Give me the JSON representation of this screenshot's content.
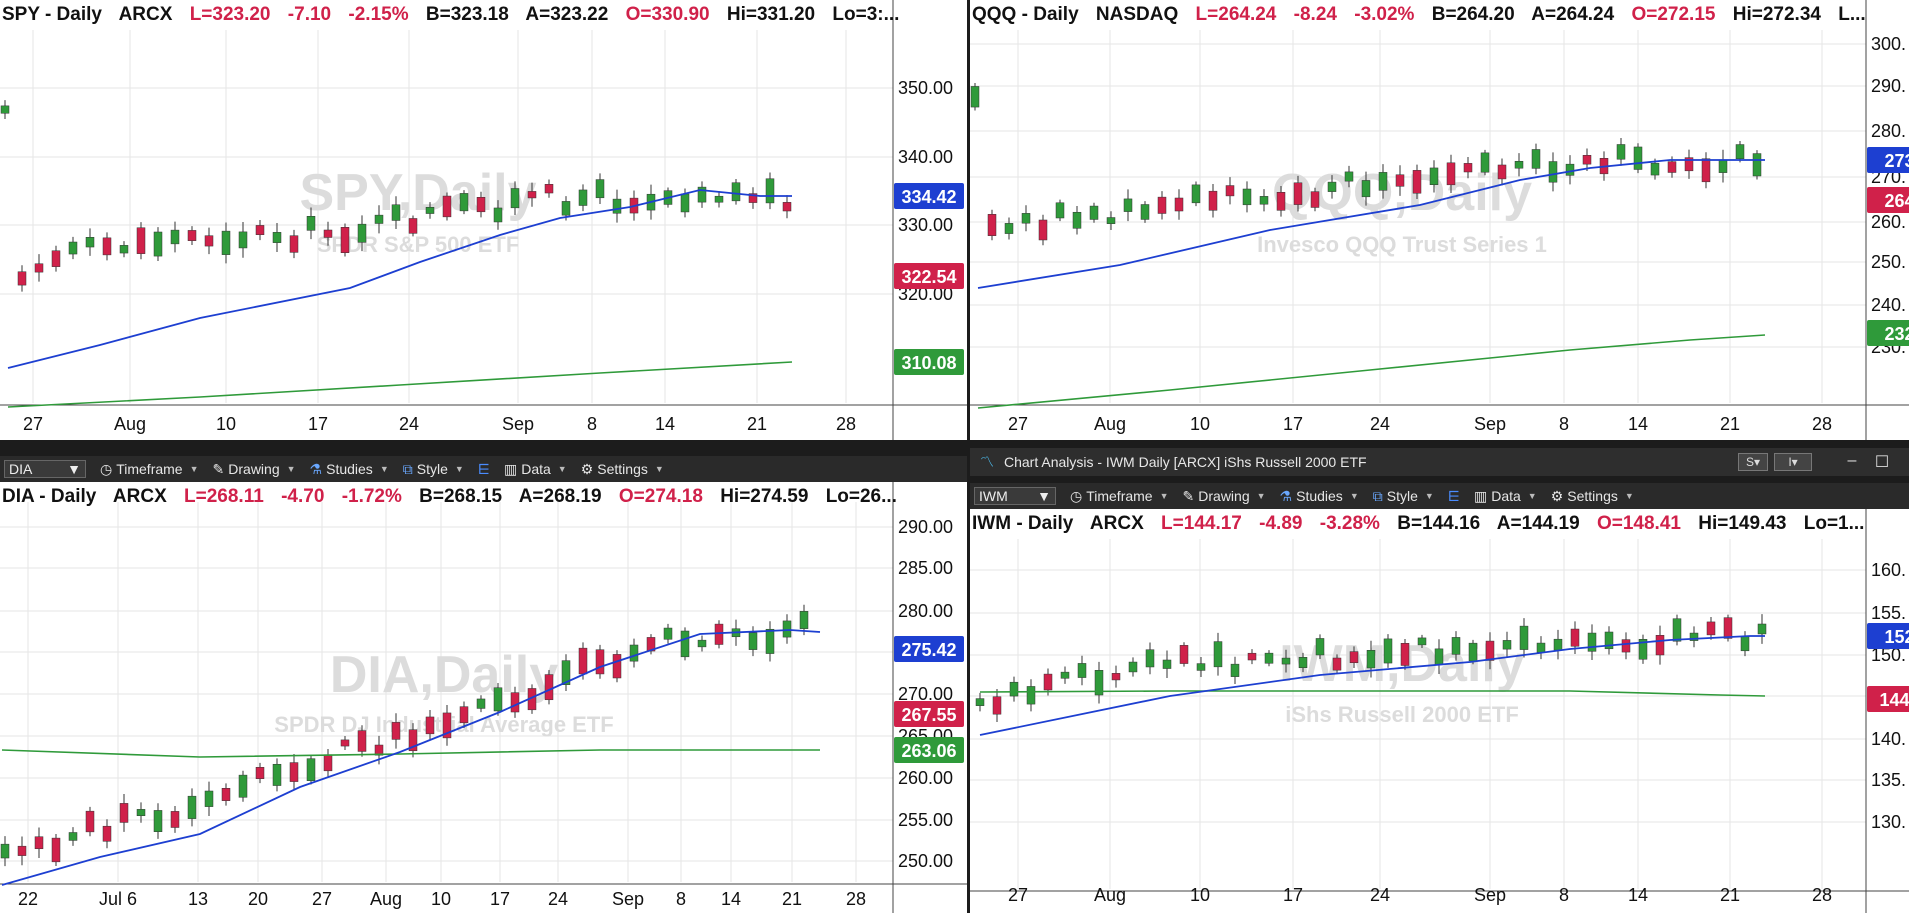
{
  "panes": [
    {
      "id": "spy",
      "header": {
        "sym": "SPY - Daily",
        "exch": "ARCX",
        "L": "L=323.20",
        "chg": "-7.10",
        "pct": "-2.15%",
        "B": "B=323.18",
        "A": "A=323.22",
        "O": "O=330.90",
        "Hi": "Hi=331.20",
        "Lo": "Lo=3:..."
      },
      "watermark": "SPY,Daily",
      "watermark_sub": "SPDR S&P 500 ETF",
      "price_ticks": [
        "350.00",
        "340.00",
        "330.00",
        "320.00"
      ],
      "badges": [
        {
          "value": "334.42",
          "color": "#1d3fd1"
        },
        {
          "value": "322.54",
          "color": "#d0214a"
        },
        {
          "value": "310.08",
          "color": "#2f9a3a"
        }
      ],
      "date_ticks": [
        "27",
        "Aug",
        "10",
        "17",
        "24",
        "Sep",
        "8",
        "14",
        "21",
        "28"
      ]
    },
    {
      "id": "qqq",
      "header": {
        "sym": "QQQ - Daily",
        "exch": "NASDAQ",
        "L": "L=264.24",
        "chg": "-8.24",
        "pct": "-3.02%",
        "B": "B=264.20",
        "A": "A=264.24",
        "O": "O=272.15",
        "Hi": "Hi=272.34",
        "Lo": "L..."
      },
      "watermark": "QQQ,Daily",
      "watermark_sub": "Invesco QQQ Trust Series 1",
      "price_ticks": [
        "300.",
        "290.",
        "280.",
        "270.",
        "260.",
        "250.",
        "240.",
        "230."
      ],
      "badges": [
        {
          "value": "273.",
          "color": "#1d3fd1"
        },
        {
          "value": "264.",
          "color": "#d0214a"
        },
        {
          "value": "232.",
          "color": "#2f9a3a"
        }
      ],
      "date_ticks": [
        "27",
        "Aug",
        "10",
        "17",
        "24",
        "Sep",
        "8",
        "14",
        "21",
        "28"
      ]
    },
    {
      "id": "dia",
      "header": {
        "sym": "DIA - Daily",
        "exch": "ARCX",
        "L": "L=268.11",
        "chg": "-4.70",
        "pct": "-1.72%",
        "B": "B=268.15",
        "A": "A=268.19",
        "O": "O=274.18",
        "Hi": "Hi=274.59",
        "Lo": "Lo=26..."
      },
      "watermark": "DIA,Daily",
      "watermark_sub": "SPDR DJ Industrial Average ETF",
      "price_ticks": [
        "290.00",
        "285.00",
        "280.00",
        "275.00",
        "270.00",
        "265.00",
        "260.00",
        "255.00",
        "250.00"
      ],
      "badges": [
        {
          "value": "275.42",
          "color": "#1d3fd1"
        },
        {
          "value": "267.55",
          "color": "#d0214a"
        },
        {
          "value": "263.06",
          "color": "#2f9a3a"
        }
      ],
      "date_ticks": [
        "22",
        "Jul 6",
        "13",
        "20",
        "27",
        "Aug",
        "10",
        "17",
        "24",
        "Sep",
        "8",
        "14",
        "21",
        "28"
      ]
    },
    {
      "id": "iwm",
      "header": {
        "sym": "IWM - Daily",
        "exch": "ARCX",
        "L": "L=144.17",
        "chg": "-4.89",
        "pct": "-3.28%",
        "B": "B=144.16",
        "A": "A=144.19",
        "O": "O=148.41",
        "Hi": "Hi=149.43",
        "Lo": "Lo=1..."
      },
      "watermark": "IWM,Daily",
      "watermark_sub": "iShs Russell 2000 ETF",
      "price_ticks": [
        "160.",
        "155.",
        "150.",
        "145.",
        "140.",
        "135.",
        "130."
      ],
      "badges": [
        {
          "value": "152.",
          "color": "#1d3fd1"
        },
        {
          "value": "144.0",
          "color": "#d0214a"
        }
      ],
      "date_ticks": [
        "27",
        "Aug",
        "10",
        "17",
        "24",
        "Sep",
        "8",
        "14",
        "21",
        "28"
      ]
    }
  ],
  "toolbar": {
    "symbol_dia": "DIA",
    "symbol_iwm": "IWM",
    "timeframe": "Timeframe",
    "drawing": "Drawing",
    "studies": "Studies",
    "style": "Style",
    "data": "Data",
    "settings": "Settings"
  },
  "window": {
    "title": "Chart Analysis - IWM Daily [ARCX] iShs Russell 2000 ETF",
    "btn_s": "S",
    "btn_i": "I"
  },
  "colors": {
    "up": "#2f9a3a",
    "down": "#d0214a",
    "ma_blue": "#1d3fd1",
    "ma_green": "#2f9a3a",
    "grid": "#e6e6e6"
  },
  "chart_data": [
    {
      "type": "candlestick",
      "title": "SPY - Daily ARCX",
      "ylim": [
        315,
        356
      ],
      "yticks": [
        350,
        340,
        330,
        320
      ],
      "series": [
        {
          "name": "price",
          "close": [
            323.2
          ]
        },
        {
          "name": "ma_blue_last",
          "values": [
            334.42
          ]
        },
        {
          "name": "ma_green_last",
          "values": [
            310.08
          ]
        }
      ]
    },
    {
      "type": "candlestick",
      "title": "QQQ - Daily NASDAQ",
      "ylim": [
        225,
        303
      ],
      "yticks": [
        300,
        290,
        280,
        270,
        260,
        250,
        240,
        230
      ]
    },
    {
      "type": "candlestick",
      "title": "DIA - Daily ARCX",
      "ylim": [
        248,
        292
      ],
      "yticks": [
        290,
        285,
        280,
        275,
        270,
        265,
        260,
        255,
        250
      ]
    },
    {
      "type": "candlestick",
      "title": "IWM - Daily ARCX",
      "ylim": [
        127,
        163
      ],
      "yticks": [
        160,
        155,
        150,
        145,
        140,
        135,
        130
      ]
    }
  ]
}
